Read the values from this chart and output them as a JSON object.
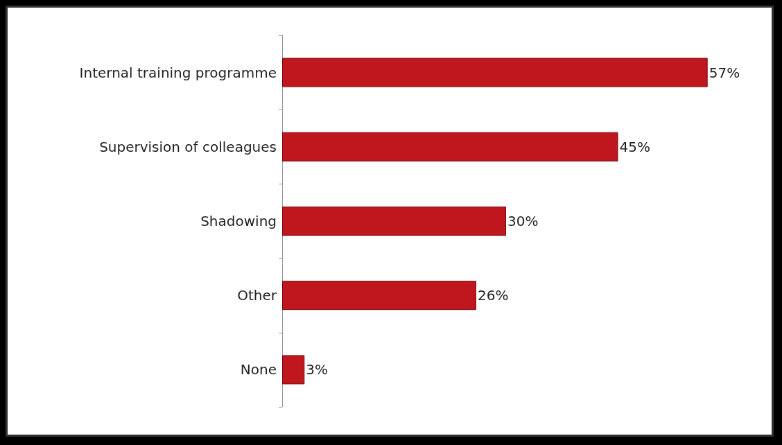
{
  "chart_data": {
    "type": "bar",
    "orientation": "horizontal",
    "categories": [
      "Internal training programme",
      "Supervision of colleagues",
      "Shadowing",
      "Other",
      "None"
    ],
    "values": [
      57,
      45,
      30,
      26,
      3
    ],
    "color": "#c0161e",
    "value_labels": [
      "57%",
      "45%",
      "30%",
      "26%",
      "3%"
    ]
  }
}
